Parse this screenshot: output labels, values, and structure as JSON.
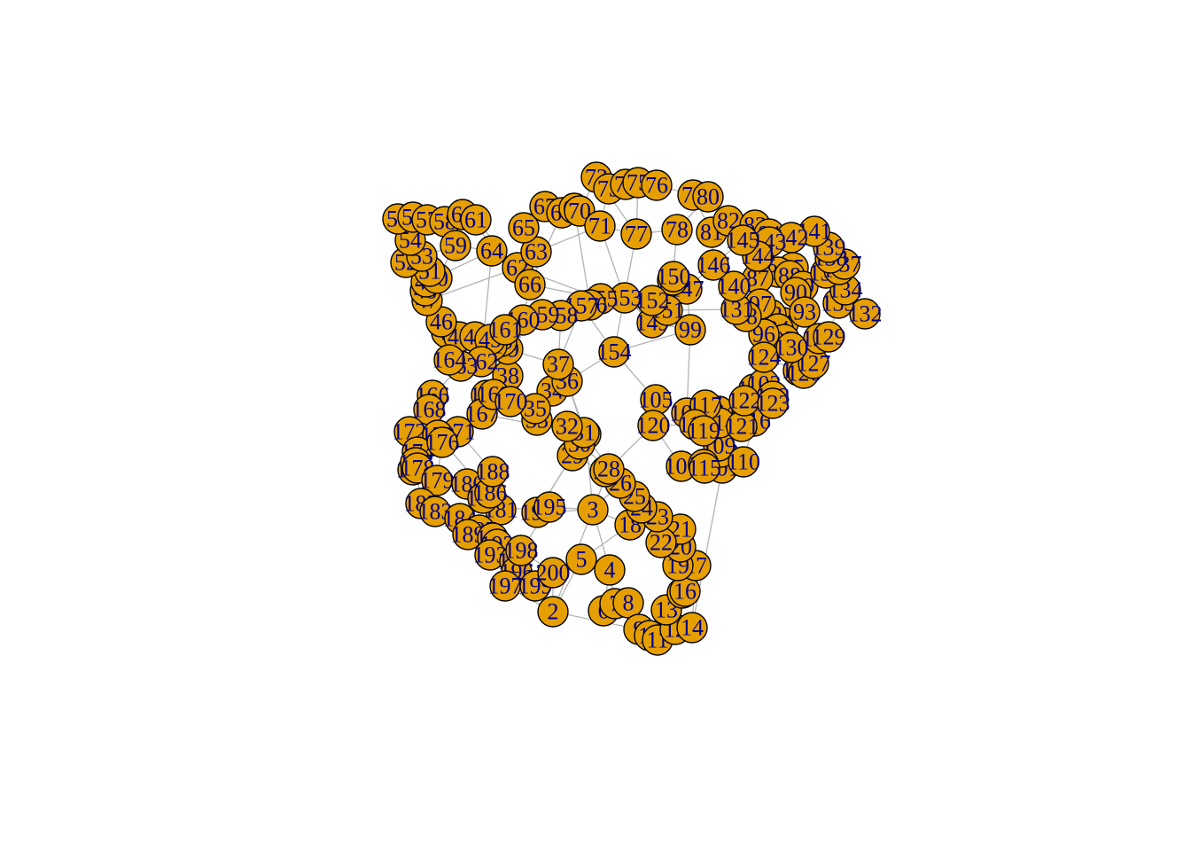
{
  "graph": {
    "style": {
      "node_fill": "#e69f00",
      "node_stroke": "#000000",
      "label_color": "#00008b",
      "edge_color": "#b3b3b3",
      "background": "#ffffff"
    },
    "nodes": [
      "1",
      "2",
      "3",
      "4",
      "5",
      "6",
      "7",
      "8",
      "9",
      "10",
      "11",
      "12",
      "13",
      "14",
      "15",
      "16",
      "17",
      "18",
      "19",
      "20",
      "21",
      "22",
      "23",
      "24",
      "25",
      "26",
      "27",
      "28",
      "29",
      "30",
      "31",
      "32",
      "33",
      "34",
      "35",
      "36",
      "37",
      "38",
      "39",
      "40",
      "41",
      "42",
      "43",
      "44",
      "45",
      "46",
      "47",
      "48",
      "49",
      "50",
      "51",
      "52",
      "53",
      "54",
      "55",
      "56",
      "57",
      "58",
      "59",
      "60",
      "61",
      "62",
      "63",
      "64",
      "65",
      "66",
      "67",
      "68",
      "69",
      "70",
      "71",
      "72",
      "73",
      "74",
      "75",
      "76",
      "77",
      "78",
      "79",
      "80",
      "81",
      "82",
      "83",
      "84",
      "85",
      "86",
      "87",
      "88",
      "89",
      "90",
      "91",
      "92",
      "93",
      "94",
      "95",
      "96",
      "97",
      "98",
      "99",
      "100",
      "101",
      "102",
      "103",
      "104",
      "105",
      "106",
      "107",
      "108",
      "109",
      "110",
      "111",
      "112",
      "113",
      "114",
      "115",
      "116",
      "117",
      "118",
      "119",
      "120",
      "121",
      "122",
      "123",
      "124",
      "125",
      "126",
      "127",
      "128",
      "129",
      "130",
      "131",
      "132",
      "133",
      "134",
      "135",
      "136",
      "137",
      "138",
      "139",
      "140",
      "141",
      "142",
      "143",
      "144",
      "145",
      "146",
      "147",
      "148",
      "149",
      "150",
      "151",
      "152",
      "153",
      "154",
      "155",
      "156",
      "157",
      "158",
      "159",
      "160",
      "161",
      "162",
      "163",
      "164",
      "165",
      "166",
      "167",
      "168",
      "169",
      "170",
      "171",
      "172",
      "173",
      "174",
      "175",
      "176",
      "177",
      "178",
      "179",
      "180",
      "181",
      "182",
      "183",
      "184",
      "185",
      "186",
      "187",
      "188",
      "189",
      "190",
      "191",
      "192",
      "193",
      "194",
      "195",
      "196",
      "197",
      "198",
      "199",
      "200"
    ]
  }
}
